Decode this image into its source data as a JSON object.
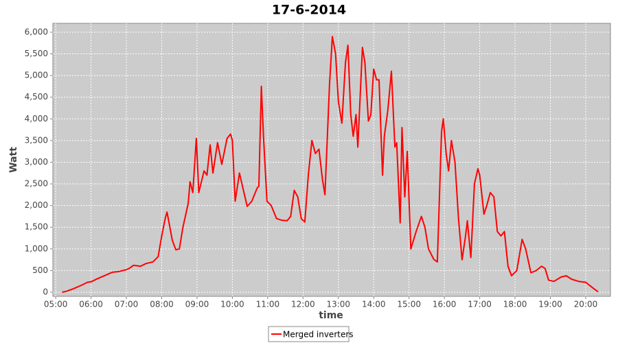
{
  "chart_data": {
    "type": "line",
    "title": "17-6-2014",
    "x_label": "time",
    "y_label": "Watt",
    "x": [
      5.18,
      5.3,
      5.5,
      5.7,
      5.9,
      6.0,
      6.2,
      6.4,
      6.6,
      6.8,
      7.0,
      7.1,
      7.2,
      7.4,
      7.55,
      7.75,
      7.9,
      8.0,
      8.1,
      8.15,
      8.22,
      8.3,
      8.4,
      8.5,
      8.6,
      8.75,
      8.8,
      8.88,
      8.98,
      9.05,
      9.2,
      9.28,
      9.37,
      9.45,
      9.58,
      9.7,
      9.85,
      9.95,
      10.0,
      10.08,
      10.2,
      10.3,
      10.42,
      10.55,
      10.7,
      10.75,
      10.82,
      10.88,
      10.98,
      11.1,
      11.25,
      11.4,
      11.55,
      11.65,
      11.75,
      11.85,
      11.95,
      12.05,
      12.15,
      12.25,
      12.35,
      12.45,
      12.55,
      12.62,
      12.75,
      12.83,
      12.92,
      13.0,
      13.1,
      13.2,
      13.27,
      13.35,
      13.42,
      13.5,
      13.55,
      13.68,
      13.75,
      13.85,
      13.92,
      14.0,
      14.08,
      14.15,
      14.25,
      14.3,
      14.4,
      14.5,
      14.6,
      14.65,
      14.75,
      14.8,
      14.88,
      14.95,
      15.05,
      15.2,
      15.35,
      15.45,
      15.55,
      15.7,
      15.8,
      15.92,
      15.97,
      16.05,
      16.12,
      16.2,
      16.3,
      16.4,
      16.5,
      16.6,
      16.65,
      16.75,
      16.85,
      16.95,
      17.0,
      17.12,
      17.2,
      17.3,
      17.4,
      17.5,
      17.6,
      17.7,
      17.8,
      17.9,
      18.05,
      18.2,
      18.3,
      18.45,
      18.6,
      18.75,
      18.85,
      18.95,
      19.1,
      19.3,
      19.45,
      19.6,
      19.8,
      20.0,
      20.2,
      20.35
    ],
    "series": [
      {
        "name": "Merged inverters",
        "color": "#ff0000",
        "values": [
          0,
          20,
          80,
          150,
          230,
          240,
          320,
          390,
          460,
          480,
          520,
          560,
          620,
          600,
          660,
          700,
          820,
          1300,
          1700,
          1850,
          1550,
          1200,
          980,
          1000,
          1500,
          2050,
          2550,
          2300,
          3550,
          2300,
          2800,
          2700,
          3400,
          2750,
          3450,
          2950,
          3550,
          3650,
          3500,
          2100,
          2750,
          2400,
          1980,
          2100,
          2400,
          2450,
          4750,
          3600,
          2100,
          2000,
          1700,
          1660,
          1650,
          1750,
          2350,
          2200,
          1700,
          1620,
          2700,
          3500,
          3200,
          3300,
          2600,
          2250,
          4800,
          5900,
          5500,
          4400,
          3900,
          5300,
          5700,
          4100,
          3600,
          4100,
          3350,
          5650,
          5300,
          3950,
          4100,
          5150,
          4900,
          4900,
          2700,
          3600,
          4200,
          5100,
          3350,
          3450,
          1600,
          3800,
          2200,
          3250,
          1000,
          1400,
          1750,
          1500,
          1000,
          760,
          700,
          3700,
          4000,
          3200,
          2800,
          3500,
          3000,
          1700,
          750,
          1300,
          1650,
          800,
          2500,
          2850,
          2700,
          1800,
          2000,
          2300,
          2200,
          1400,
          1300,
          1400,
          600,
          380,
          500,
          1220,
          1000,
          450,
          500,
          600,
          550,
          280,
          250,
          350,
          380,
          300,
          250,
          230,
          100,
          10
        ]
      }
    ],
    "xlim": [
      4.92,
      20.7
    ],
    "xticks": [
      {
        "value": 5,
        "label": "05:00"
      },
      {
        "value": 6,
        "label": "06:00"
      },
      {
        "value": 7,
        "label": "07:00"
      },
      {
        "value": 8,
        "label": "08:00"
      },
      {
        "value": 9,
        "label": "09:00"
      },
      {
        "value": 10,
        "label": "10:00"
      },
      {
        "value": 11,
        "label": "11:00"
      },
      {
        "value": 12,
        "label": "12:00"
      },
      {
        "value": 13,
        "label": "13:00"
      },
      {
        "value": 14,
        "label": "14:00"
      },
      {
        "value": 15,
        "label": "15:00"
      },
      {
        "value": 16,
        "label": "16:00"
      },
      {
        "value": 17,
        "label": "17:00"
      },
      {
        "value": 18,
        "label": "18:00"
      },
      {
        "value": 19,
        "label": "19:00"
      },
      {
        "value": 20,
        "label": "20:00"
      }
    ],
    "ylim": [
      -95,
      6205
    ],
    "yticks": [
      0,
      500,
      {
        "value": 1000,
        "label": "1,000"
      },
      {
        "value": 1500,
        "label": "1,500"
      },
      {
        "value": 2000,
        "label": "2,000"
      },
      {
        "value": 2500,
        "label": "2,500"
      },
      {
        "value": 3000,
        "label": "3,000"
      },
      {
        "value": 3500,
        "label": "3,500"
      },
      {
        "value": 4000,
        "label": "4,000"
      },
      {
        "value": 4500,
        "label": "4,500"
      },
      {
        "value": 5000,
        "label": "5,000"
      },
      {
        "value": 5500,
        "label": "5,500"
      },
      {
        "value": 6000,
        "label": "6,000"
      }
    ],
    "grid": true
  }
}
